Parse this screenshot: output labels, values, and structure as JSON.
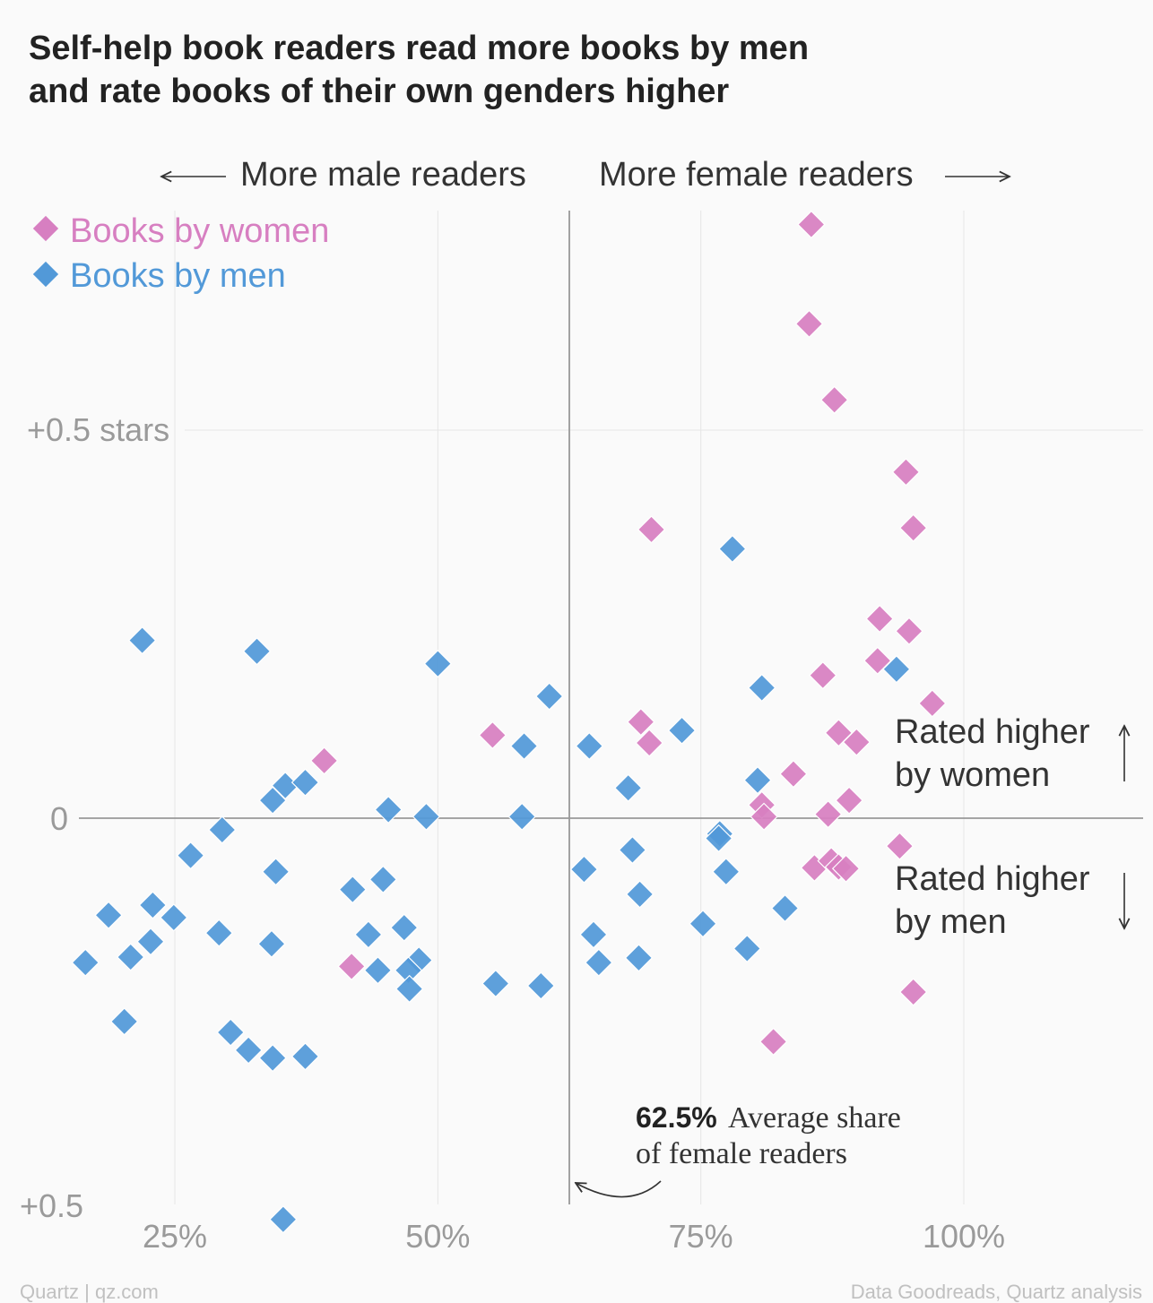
{
  "title_line1": "Self-help book readers read more books by men",
  "title_line2": "and rate books of their own genders higher",
  "footer": {
    "left": "Quartz | qz.com",
    "right": "Data Goodreads, Quartz analysis"
  },
  "colors": {
    "women": "#d77fc1",
    "men": "#5299d8",
    "axis": "#999999",
    "grid": "#e6e6e6",
    "muted": "#9a9a9a"
  },
  "chart_data": {
    "type": "scatter",
    "title": "Self-help book readers read more books by men and rate books of their own genders higher",
    "xlabel_left": "More male readers",
    "xlabel_right": "More female readers",
    "x_unit": "share of female readers (%)",
    "y_unit": "rating difference, women minus men (stars)",
    "xlim": [
      15,
      118
    ],
    "ylim": [
      -0.515,
      0.775
    ],
    "x_ticks": [
      {
        "value": 25,
        "label": "25%"
      },
      {
        "value": 50,
        "label": "50%"
      },
      {
        "value": 75,
        "label": "75%"
      },
      {
        "value": 100,
        "label": "100%"
      }
    ],
    "y_ticks": [
      {
        "value": 0.5,
        "label": "+0.5 stars"
      },
      {
        "value": 0,
        "label": "0"
      },
      {
        "value": -0.5,
        "label": "+0.5"
      }
    ],
    "reference_line": {
      "x": 62.5,
      "value_label": "62.5%",
      "label_line1": "Average share",
      "label_line2": "of female readers"
    },
    "annotations": {
      "up_line1": "Rated higher",
      "up_line2": "by women",
      "down_line1": "Rated higher",
      "down_line2": "by men"
    },
    "legend": [
      "Books by women",
      "Books by men"
    ],
    "series": [
      {
        "name": "Books by women",
        "points": [
          [
            85.5,
            0.765
          ],
          [
            85.3,
            0.637
          ],
          [
            87.7,
            0.539
          ],
          [
            94.5,
            0.446
          ],
          [
            95.2,
            0.374
          ],
          [
            70.3,
            0.372
          ],
          [
            92.0,
            0.257
          ],
          [
            94.8,
            0.241
          ],
          [
            91.8,
            0.203
          ],
          [
            86.6,
            0.184
          ],
          [
            97.0,
            0.148
          ],
          [
            69.3,
            0.124
          ],
          [
            88.1,
            0.11
          ],
          [
            89.8,
            0.098
          ],
          [
            70.1,
            0.097
          ],
          [
            55.2,
            0.107
          ],
          [
            39.2,
            0.074
          ],
          [
            83.8,
            0.057
          ],
          [
            80.8,
            0.017
          ],
          [
            89.1,
            0.023
          ],
          [
            81.0,
            0.002
          ],
          [
            87.1,
            0.005
          ],
          [
            93.9,
            -0.036
          ],
          [
            85.8,
            -0.064
          ],
          [
            87.4,
            -0.055
          ],
          [
            88.1,
            -0.063
          ],
          [
            88.8,
            -0.065
          ],
          [
            41.8,
            -0.191
          ],
          [
            95.2,
            -0.224
          ],
          [
            81.9,
            -0.288
          ]
        ]
      },
      {
        "name": "Books by men",
        "points": [
          [
            78.0,
            0.347
          ],
          [
            21.9,
            0.229
          ],
          [
            32.8,
            0.215
          ],
          [
            50.0,
            0.199
          ],
          [
            93.6,
            0.192
          ],
          [
            80.8,
            0.168
          ],
          [
            60.6,
            0.157
          ],
          [
            73.2,
            0.113
          ],
          [
            58.2,
            0.093
          ],
          [
            64.4,
            0.093
          ],
          [
            68.1,
            0.039
          ],
          [
            80.4,
            0.049
          ],
          [
            35.5,
            0.042
          ],
          [
            37.4,
            0.046
          ],
          [
            34.3,
            0.023
          ],
          [
            45.3,
            0.011
          ],
          [
            48.9,
            0.002
          ],
          [
            58.0,
            0.002
          ],
          [
            29.5,
            -0.015
          ],
          [
            76.8,
            -0.02
          ],
          [
            76.7,
            -0.026
          ],
          [
            26.5,
            -0.048
          ],
          [
            68.5,
            -0.041
          ],
          [
            63.9,
            -0.066
          ],
          [
            34.6,
            -0.069
          ],
          [
            44.8,
            -0.079
          ],
          [
            77.4,
            -0.069
          ],
          [
            41.9,
            -0.092
          ],
          [
            69.2,
            -0.098
          ],
          [
            18.7,
            -0.125
          ],
          [
            22.9,
            -0.112
          ],
          [
            24.9,
            -0.128
          ],
          [
            83.0,
            -0.116
          ],
          [
            75.2,
            -0.136
          ],
          [
            29.2,
            -0.148
          ],
          [
            46.8,
            -0.141
          ],
          [
            43.4,
            -0.15
          ],
          [
            34.2,
            -0.162
          ],
          [
            22.7,
            -0.159
          ],
          [
            64.8,
            -0.15
          ],
          [
            20.8,
            -0.179
          ],
          [
            48.2,
            -0.183
          ],
          [
            16.5,
            -0.186
          ],
          [
            44.3,
            -0.196
          ],
          [
            47.2,
            -0.196
          ],
          [
            47.3,
            -0.22
          ],
          [
            55.5,
            -0.213
          ],
          [
            59.8,
            -0.216
          ],
          [
            65.3,
            -0.186
          ],
          [
            69.1,
            -0.18
          ],
          [
            79.4,
            -0.168
          ],
          [
            20.2,
            -0.262
          ],
          [
            30.3,
            -0.276
          ],
          [
            32.0,
            -0.299
          ],
          [
            34.3,
            -0.309
          ],
          [
            37.4,
            -0.307
          ],
          [
            35.3,
            -0.517
          ]
        ]
      }
    ]
  }
}
